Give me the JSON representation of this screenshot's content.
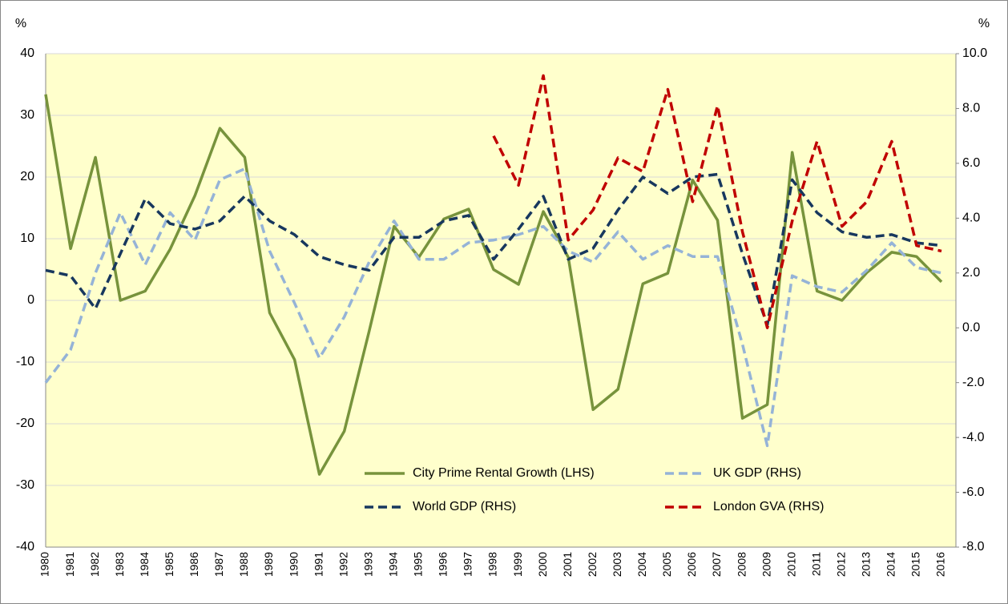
{
  "chart_data": {
    "type": "line",
    "ylabel": "%",
    "y2label": "%",
    "categories": [
      "1980",
      "1981",
      "1982",
      "1983",
      "1984",
      "1985",
      "1986",
      "1987",
      "1988",
      "1989",
      "1990",
      "1991",
      "1992",
      "1993",
      "1994",
      "1995",
      "1996",
      "1997",
      "1998",
      "1999",
      "2000",
      "2001",
      "2002",
      "2003",
      "2004",
      "2005",
      "2006",
      "2007",
      "2008",
      "2009",
      "2010",
      "2011",
      "2012",
      "2013",
      "2014",
      "2015",
      "2016"
    ],
    "ylim": [
      -40,
      40
    ],
    "yticks": [
      -40,
      -30,
      -20,
      -10,
      0,
      10,
      20,
      30,
      40
    ],
    "y2lim": [
      -8,
      10
    ],
    "y2ticks": [
      {
        "value": -8,
        "label": "-8.0"
      },
      {
        "value": -6,
        "label": "-6.0"
      },
      {
        "value": -4,
        "label": "-4.0"
      },
      {
        "value": -2,
        "label": "-2.0"
      },
      {
        "value": 0,
        "label": "0.0"
      },
      {
        "value": 2,
        "label": "2.0"
      },
      {
        "value": 4,
        "label": "4.0"
      },
      {
        "value": 6,
        "label": "6.0"
      },
      {
        "value": 8,
        "label": "8.0"
      },
      {
        "value": 10,
        "label": "10.0"
      }
    ],
    "grid": true,
    "legend": "lower center",
    "background": "#ffffcc",
    "series": [
      {
        "name": "City Prime Rental Growth (LHS)",
        "color": "#77933c",
        "style": "solid",
        "values": [
          33.4,
          8.4,
          23.2,
          0,
          1.5,
          8.3,
          17,
          27.9,
          23.2,
          -2,
          -9.6,
          -28.2,
          -21.2,
          -5,
          12,
          7,
          13.2,
          14.8,
          5,
          2.6,
          14.4,
          7,
          -17.7,
          -14.4,
          2.7,
          4.4,
          19.5,
          13,
          -19.1,
          -16.9,
          24,
          1.5,
          0,
          4.5,
          7.8,
          7.1,
          3
        ]
      },
      {
        "name": "UK GDP (RHS)",
        "color": "#95b3d7",
        "style": "dashed",
        "axis": "y2",
        "values": [
          -2.0,
          -0.8,
          2.0,
          4.2,
          2.3,
          4.2,
          3.2,
          5.4,
          5.8,
          2.8,
          0.9,
          -1.1,
          0.4,
          2.4,
          3.9,
          2.5,
          2.5,
          3.1,
          3.2,
          3.4,
          3.7,
          2.8,
          2.4,
          3.5,
          2.5,
          3.0,
          2.6,
          2.6,
          -0.6,
          -4.3,
          1.9,
          1.5,
          1.3,
          2.1,
          3.1,
          2.2,
          2.0
        ]
      },
      {
        "name": "World GDP (RHS)",
        "color": "#17375e",
        "style": "dashed",
        "axis": "y2",
        "values": [
          2.1,
          1.9,
          0.7,
          2.7,
          4.7,
          3.8,
          3.6,
          3.9,
          4.8,
          3.9,
          3.4,
          2.6,
          2.3,
          2.1,
          3.3,
          3.3,
          3.9,
          4.1,
          2.5,
          3.6,
          4.8,
          2.5,
          2.9,
          4.3,
          5.5,
          4.9,
          5.5,
          5.6,
          2.7,
          0.1,
          5.4,
          4.2,
          3.5,
          3.3,
          3.4,
          3.1,
          3.0
        ]
      },
      {
        "name": "London GVA (RHS)",
        "color": "#c00000",
        "style": "dashed",
        "axis": "y2",
        "values": [
          null,
          null,
          null,
          null,
          null,
          null,
          null,
          null,
          null,
          null,
          null,
          null,
          null,
          null,
          null,
          null,
          null,
          null,
          7.0,
          5.2,
          9.2,
          3.2,
          4.3,
          6.2,
          5.7,
          8.7,
          4.6,
          8.1,
          3.5,
          0.0,
          3.9,
          6.8,
          3.7,
          4.6,
          6.8,
          3.0,
          2.8
        ]
      }
    ]
  }
}
